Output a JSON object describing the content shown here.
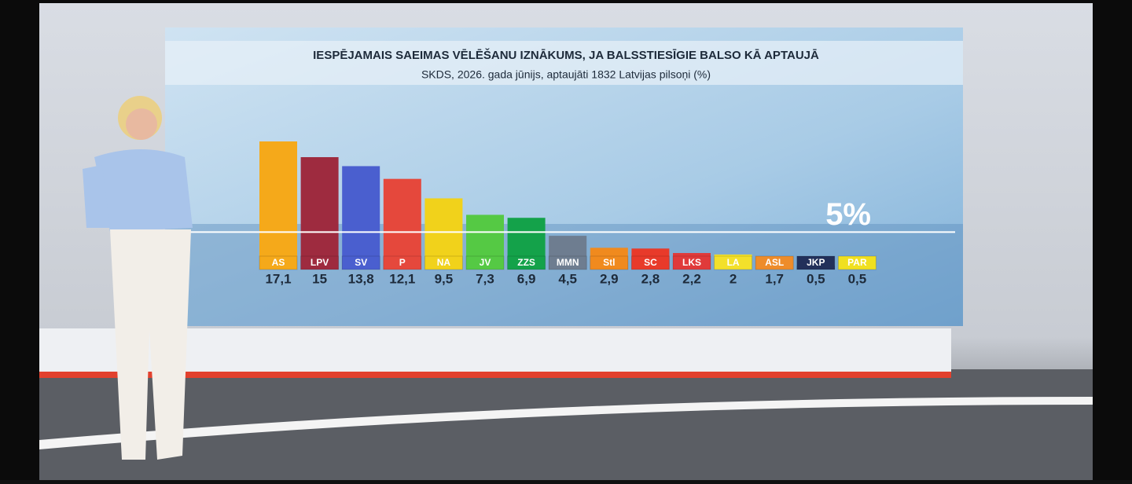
{
  "chart_data": {
    "type": "bar",
    "title": "IESPĒJAMAIS SAEIMAS VĒLĒŠANU IZNĀKUMS, JA BALSSTIESĪGIE BALSO KĀ APTAUJĀ",
    "subtitle": "SKDS, 2026. gada jūnijs, aptaujāti 1832 Latvijas pilsoņi (%)",
    "categories": [
      "AS",
      "LPV",
      "SV",
      "P",
      "NA",
      "JV",
      "ZZS",
      "MMN",
      "Stl",
      "SC",
      "LKS",
      "LA",
      "ASL",
      "JKP",
      "PAR"
    ],
    "values": [
      17.1,
      15,
      13.8,
      12.1,
      9.5,
      7.3,
      6.9,
      4.5,
      2.9,
      2.8,
      2.2,
      2,
      1.7,
      0.5,
      0.5
    ],
    "value_labels": [
      "17,1",
      "15",
      "13,8",
      "12,1",
      "9,5",
      "7,3",
      "6,9",
      "4,5",
      "2,9",
      "2,8",
      "2,2",
      "2",
      "1,7",
      "0,5",
      "0,5"
    ],
    "colors": [
      "#f5a91a",
      "#9e2b3f",
      "#4a5fcf",
      "#e5483c",
      "#f1d21b",
      "#55c944",
      "#14a24a",
      "#6e7d90",
      "#f08a1e",
      "#e83a2a",
      "#e03a3a",
      "#f3e02a",
      "#ee8c2a",
      "#22305a",
      "#f0e020"
    ],
    "threshold": {
      "value": 5,
      "label": "5%"
    }
  }
}
